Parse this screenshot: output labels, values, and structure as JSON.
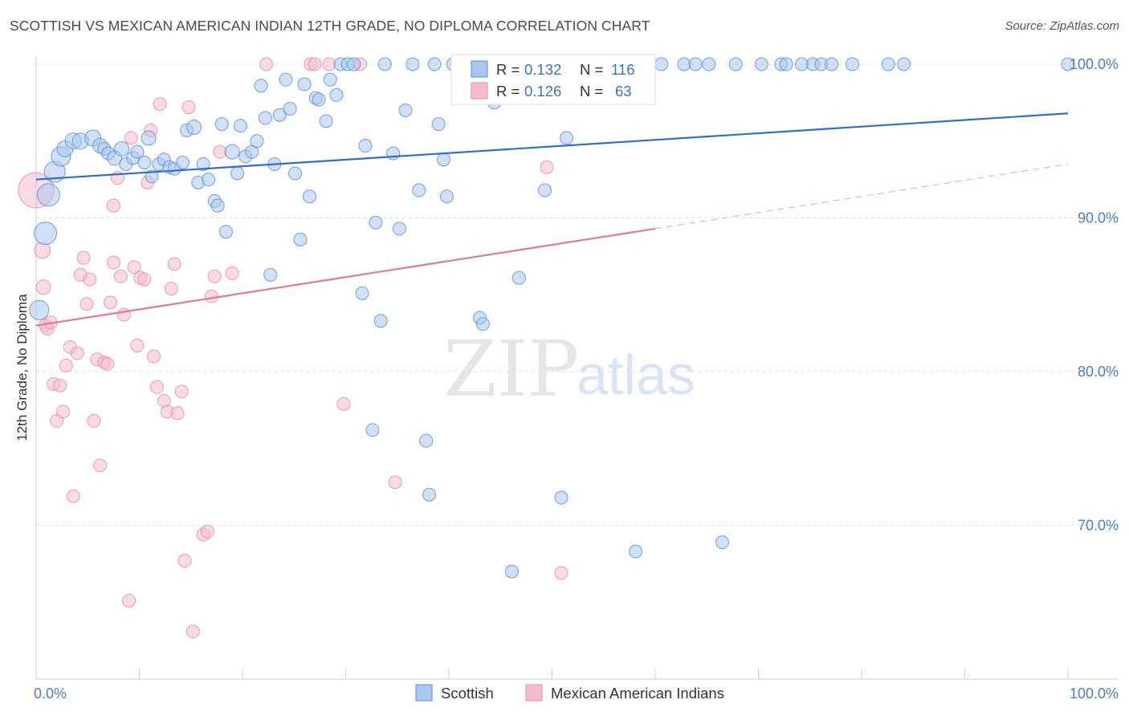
{
  "header": {
    "title": "SCOTTISH VS MEXICAN AMERICAN INDIAN 12TH GRADE, NO DIPLOMA CORRELATION CHART",
    "source": "Source: ZipAtlas.com"
  },
  "watermark": {
    "zip": "ZIP",
    "atlas": "atlas"
  },
  "legend_top": {
    "scottish": {
      "r_label": "R =",
      "r_value": "0.132",
      "n_label": "N =",
      "n_value": "116"
    },
    "mexican": {
      "r_label": "R =",
      "r_value": "0.126",
      "n_label": "N =",
      "n_value": "63"
    }
  },
  "legend_bottom": {
    "scottish": "Scottish",
    "mexican": "Mexican American Indians"
  },
  "colors": {
    "scottish_fill": "#a9c6ee",
    "scottish_stroke": "#5a8fd6",
    "scottish_line": "#2f6fcb",
    "mexican_fill": "#f6bccd",
    "mexican_stroke": "#e98aa8",
    "mexican_line": "#e2769b",
    "grid": "#dde0e5",
    "tick_label": "#4a7cc9"
  },
  "chart_data": {
    "type": "scatter",
    "title": "SCOTTISH VS MEXICAN AMERICAN INDIAN 12TH GRADE, NO DIPLOMA CORRELATION CHART",
    "xlabel": "",
    "ylabel": "12th Grade, No Diploma",
    "xlim": [
      0,
      105
    ],
    "ylim": [
      59.5,
      101.5
    ],
    "x_tick_labels": [
      "0.0%",
      "100.0%"
    ],
    "y_ticks": [
      70,
      80,
      90,
      100
    ],
    "y_tick_labels": [
      "70.0%",
      "80.0%",
      "90.0%",
      "100.0%"
    ],
    "grid": true,
    "legend_position": "top-center",
    "series": [
      {
        "name": "Scottish",
        "R": 0.132,
        "N": 116,
        "trend": {
          "x0": 0,
          "y0": 92.5,
          "x1": 100,
          "y1": 96.8,
          "dashed_from": null
        },
        "points": [
          [
            1.2,
            91.5,
            14
          ],
          [
            0.3,
            84,
            12
          ],
          [
            0.9,
            89,
            14
          ],
          [
            1.8,
            93,
            13
          ],
          [
            2.4,
            94,
            12
          ],
          [
            2.8,
            94.5,
            10
          ],
          [
            3.6,
            95,
            10
          ],
          [
            4.3,
            95,
            10
          ],
          [
            5.5,
            95.2,
            10
          ],
          [
            6.2,
            94.7,
            9
          ],
          [
            6.6,
            94.5,
            8
          ],
          [
            7,
            94.2,
            8
          ],
          [
            7.6,
            93.9,
            9
          ],
          [
            8.3,
            94.5,
            9
          ],
          [
            8.7,
            93.5,
            8
          ],
          [
            9.4,
            93.9,
            8
          ],
          [
            9.8,
            94.3,
            8
          ],
          [
            10.5,
            93.6,
            8
          ],
          [
            10.9,
            95.2,
            9
          ],
          [
            11.2,
            92.7,
            8
          ],
          [
            11.9,
            93.5,
            8
          ],
          [
            12.4,
            93.8,
            8
          ],
          [
            12.9,
            93.3,
            8
          ],
          [
            13.4,
            93.2,
            8
          ],
          [
            14.2,
            93.6,
            8
          ],
          [
            14.6,
            95.7,
            8
          ],
          [
            15.3,
            95.9,
            9
          ],
          [
            15.7,
            92.3,
            8
          ],
          [
            16.2,
            93.5,
            8
          ],
          [
            16.7,
            92.5,
            8
          ],
          [
            17.3,
            91.1,
            8
          ],
          [
            17.6,
            90.8,
            8
          ],
          [
            18,
            96.1,
            8
          ],
          [
            18.4,
            89.1,
            8
          ],
          [
            19,
            94.3,
            9
          ],
          [
            19.5,
            92.9,
            8
          ],
          [
            19.8,
            96,
            8
          ],
          [
            20.3,
            94,
            8
          ],
          [
            20.9,
            94.3,
            8
          ],
          [
            21.4,
            95,
            8
          ],
          [
            21.8,
            98.6,
            8
          ],
          [
            22.2,
            96.5,
            8
          ],
          [
            22.7,
            86.3,
            8
          ],
          [
            23.1,
            93.5,
            8
          ],
          [
            23.6,
            96.7,
            8
          ],
          [
            24.2,
            99,
            8
          ],
          [
            24.6,
            97.1,
            8
          ],
          [
            25.1,
            92.9,
            8
          ],
          [
            25.6,
            88.6,
            8
          ],
          [
            26,
            98.7,
            8
          ],
          [
            26.5,
            91.4,
            8
          ],
          [
            27.1,
            97.8,
            8
          ],
          [
            27.4,
            97.7,
            8
          ],
          [
            28.1,
            96.3,
            8
          ],
          [
            28.5,
            99,
            8
          ],
          [
            29.1,
            98,
            8
          ],
          [
            29.5,
            100,
            8
          ],
          [
            30.2,
            100,
            8
          ],
          [
            30.8,
            100,
            8
          ],
          [
            31.6,
            85.1,
            8
          ],
          [
            31.9,
            94.7,
            8
          ],
          [
            32.6,
            76.2,
            8
          ],
          [
            32.9,
            89.7,
            8
          ],
          [
            33.4,
            83.3,
            8
          ],
          [
            33.8,
            100,
            8
          ],
          [
            34.6,
            94.2,
            8
          ],
          [
            35.2,
            89.3,
            8
          ],
          [
            35.8,
            97,
            8
          ],
          [
            36.5,
            100,
            8
          ],
          [
            37.1,
            91.8,
            8
          ],
          [
            37.8,
            75.5,
            8
          ],
          [
            38.1,
            72,
            8
          ],
          [
            38.6,
            100,
            8
          ],
          [
            39,
            96.1,
            8
          ],
          [
            39.5,
            93.8,
            8
          ],
          [
            39.8,
            91.4,
            8
          ],
          [
            40.4,
            100,
            8
          ],
          [
            41.7,
            100,
            8
          ],
          [
            42.5,
            100,
            8
          ],
          [
            43,
            83.5,
            8
          ],
          [
            43.3,
            83.1,
            8
          ],
          [
            44.4,
            97.5,
            8
          ],
          [
            45.1,
            100,
            8
          ],
          [
            46.1,
            67,
            8
          ],
          [
            46.8,
            86.1,
            8
          ],
          [
            47.1,
            100,
            8
          ],
          [
            47.8,
            100,
            8
          ],
          [
            48.9,
            97.8,
            8
          ],
          [
            49.3,
            91.8,
            8
          ],
          [
            50.9,
            71.8,
            8
          ],
          [
            51.4,
            95.2,
            8
          ],
          [
            52.4,
            100,
            8
          ],
          [
            53.2,
            100,
            8
          ],
          [
            54.8,
            100,
            8
          ],
          [
            56.2,
            100,
            8
          ],
          [
            58.1,
            68.3,
            8
          ],
          [
            59.2,
            100,
            8
          ],
          [
            60.6,
            100,
            8
          ],
          [
            62.8,
            100,
            8
          ],
          [
            63.9,
            100,
            8
          ],
          [
            65.2,
            100,
            8
          ],
          [
            66.5,
            68.9,
            8
          ],
          [
            67.8,
            100,
            8
          ],
          [
            70.3,
            100,
            8
          ],
          [
            72.2,
            100,
            8
          ],
          [
            72.7,
            100,
            8
          ],
          [
            74.2,
            100,
            8
          ],
          [
            75.3,
            100,
            8
          ],
          [
            76.1,
            100,
            8
          ],
          [
            77.1,
            100,
            8
          ],
          [
            79.1,
            100,
            8
          ],
          [
            82.6,
            100,
            8
          ],
          [
            84.1,
            100,
            8
          ],
          [
            100,
            100,
            8
          ]
        ]
      },
      {
        "name": "Mexican American Indians",
        "R": 0.126,
        "N": 63,
        "trend": {
          "x0": 0,
          "y0": 83,
          "x1": 100,
          "y1": 93.5,
          "dashed_from": 60
        },
        "points": [
          [
            0,
            91.8,
            22
          ],
          [
            0.6,
            87.9,
            10
          ],
          [
            0.7,
            85.5,
            9
          ],
          [
            0.9,
            83,
            8
          ],
          [
            1.1,
            82.8,
            8
          ],
          [
            1.4,
            83.2,
            8
          ],
          [
            1.7,
            79.2,
            8
          ],
          [
            2,
            76.8,
            8
          ],
          [
            2.3,
            79.1,
            8
          ],
          [
            2.6,
            77.4,
            8
          ],
          [
            2.9,
            80.4,
            8
          ],
          [
            3.3,
            81.6,
            8
          ],
          [
            3.6,
            71.9,
            8
          ],
          [
            4,
            81.2,
            8
          ],
          [
            4.3,
            86.3,
            8
          ],
          [
            4.6,
            87.4,
            8
          ],
          [
            4.9,
            84.4,
            8
          ],
          [
            5.2,
            86,
            8
          ],
          [
            5.6,
            76.8,
            8
          ],
          [
            5.9,
            80.8,
            8
          ],
          [
            6.2,
            73.9,
            8
          ],
          [
            6.6,
            80.6,
            8
          ],
          [
            6.9,
            80.5,
            8
          ],
          [
            7.2,
            84.5,
            8
          ],
          [
            7.5,
            87.1,
            8
          ],
          [
            7.9,
            92.6,
            8
          ],
          [
            8.2,
            86.2,
            8
          ],
          [
            8.5,
            83.7,
            8
          ],
          [
            7.5,
            90.8,
            8
          ],
          [
            9,
            65.1,
            8
          ],
          [
            9.2,
            95.2,
            8
          ],
          [
            9.5,
            86.8,
            8
          ],
          [
            9.8,
            81.7,
            8
          ],
          [
            10.1,
            86.1,
            8
          ],
          [
            10.5,
            86,
            8
          ],
          [
            10.8,
            92.3,
            8
          ],
          [
            11.1,
            95.7,
            8
          ],
          [
            11.4,
            81,
            8
          ],
          [
            11.7,
            79,
            8
          ],
          [
            12,
            97.4,
            8
          ],
          [
            12.4,
            78.1,
            8
          ],
          [
            12.7,
            77.4,
            8
          ],
          [
            13.1,
            85.4,
            8
          ],
          [
            13.4,
            87,
            8
          ],
          [
            13.7,
            77.3,
            8
          ],
          [
            14.1,
            78.7,
            8
          ],
          [
            14.4,
            67.7,
            8
          ],
          [
            14.8,
            97.2,
            8
          ],
          [
            15.2,
            63.1,
            8
          ],
          [
            16.2,
            69.4,
            8
          ],
          [
            16.6,
            69.6,
            8
          ],
          [
            17,
            84.9,
            8
          ],
          [
            17.3,
            86.2,
            8
          ],
          [
            17.8,
            94.3,
            8
          ],
          [
            19,
            86.4,
            8
          ],
          [
            22.3,
            100,
            8
          ],
          [
            26.6,
            100,
            8
          ],
          [
            27,
            100,
            8
          ],
          [
            28.4,
            100,
            8
          ],
          [
            29.8,
            77.9,
            8
          ],
          [
            31.4,
            100,
            8
          ],
          [
            34.8,
            72.8,
            8
          ],
          [
            49.5,
            93.3,
            8
          ],
          [
            50.9,
            66.9,
            8
          ]
        ]
      }
    ]
  }
}
